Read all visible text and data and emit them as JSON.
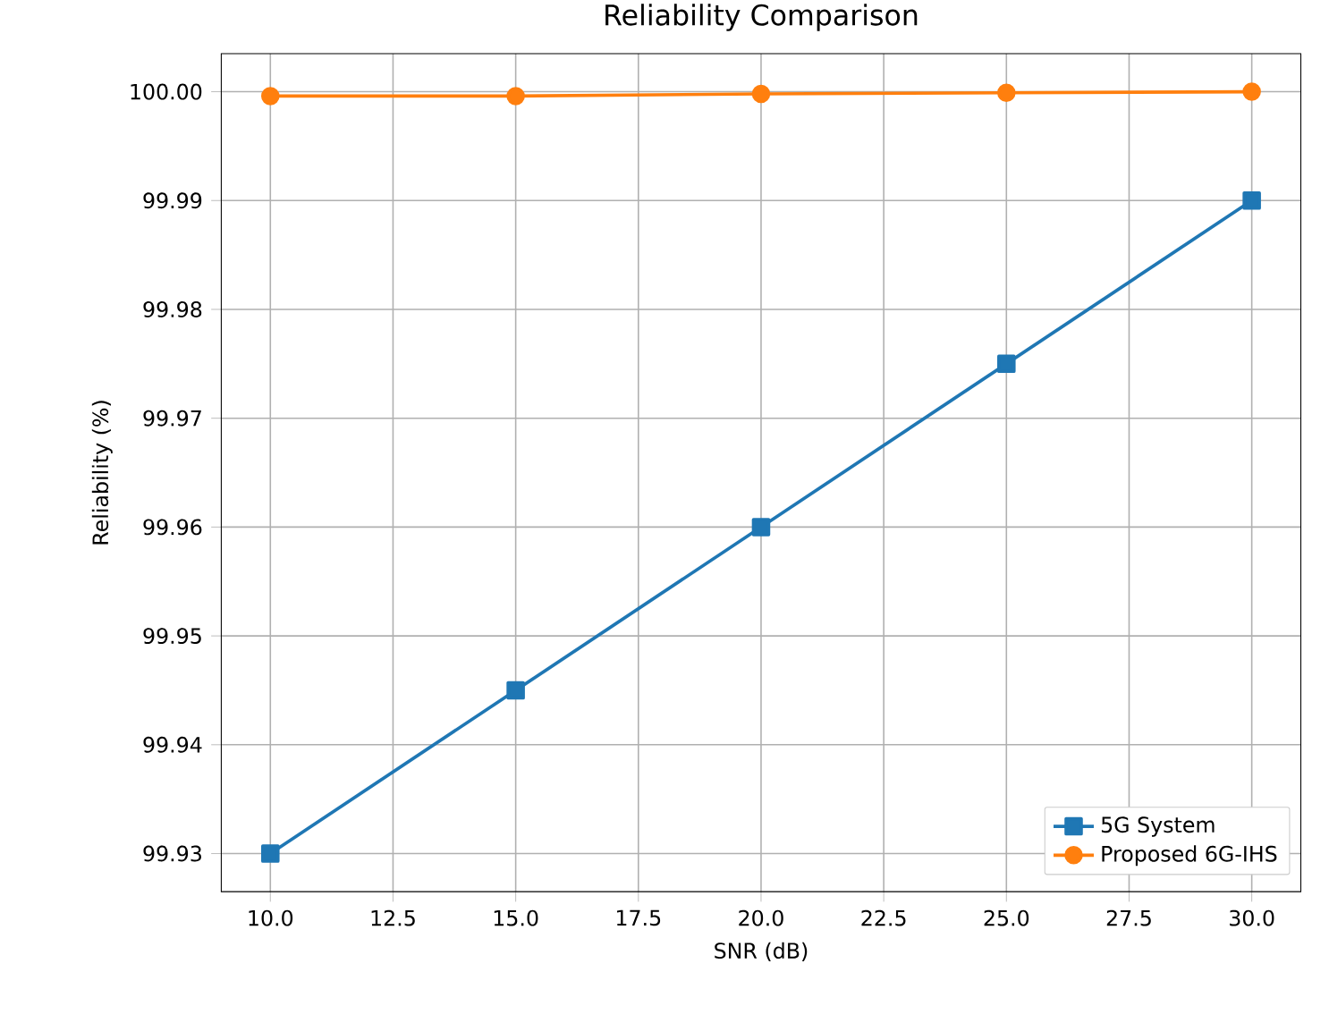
{
  "chart_data": {
    "type": "line",
    "title": "Reliability Comparison",
    "xlabel": "SNR (dB)",
    "ylabel": "Reliability (%)",
    "x": [
      10,
      15,
      20,
      25,
      30
    ],
    "series": [
      {
        "name": "5G System",
        "color": "#1f77b4",
        "marker": "square",
        "values": [
          99.93,
          99.945,
          99.96,
          99.975,
          99.99
        ]
      },
      {
        "name": "Proposed 6G-IHS",
        "color": "#ff7f0e",
        "marker": "circle",
        "values": [
          99.9996,
          99.9996,
          99.9998,
          99.9999,
          100.0
        ]
      }
    ],
    "xlim": [
      9,
      31
    ],
    "xticks": [
      {
        "value": 10,
        "label": "10.0"
      },
      {
        "value": 12.5,
        "label": "12.5"
      },
      {
        "value": 15,
        "label": "15.0"
      },
      {
        "value": 17.5,
        "label": "17.5"
      },
      {
        "value": 20,
        "label": "20.0"
      },
      {
        "value": 22.5,
        "label": "22.5"
      },
      {
        "value": 25,
        "label": "25.0"
      },
      {
        "value": 27.5,
        "label": "27.5"
      },
      {
        "value": 30,
        "label": "30.0"
      }
    ],
    "ylim": [
      99.9265,
      100.0035
    ],
    "yticks": [
      99.93,
      99.94,
      99.95,
      99.96,
      99.97,
      99.98,
      99.99,
      {
        "value": 100,
        "label": "100.00"
      }
    ],
    "grid": true,
    "legend": "bottom right",
    "line_style": "solid"
  }
}
